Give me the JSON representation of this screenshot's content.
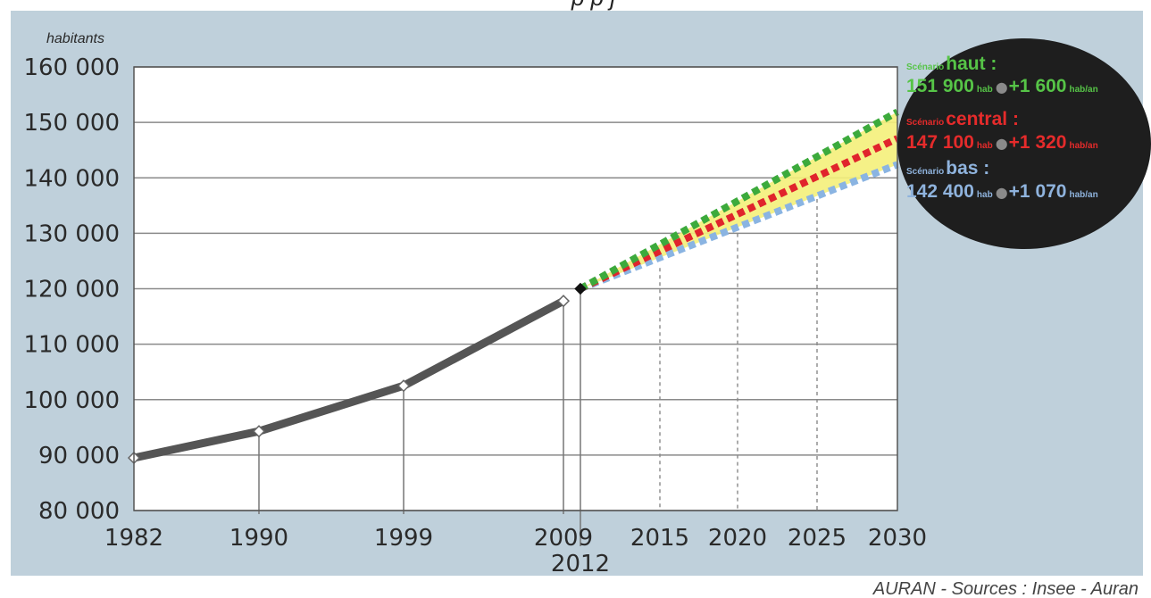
{
  "chart_data": {
    "type": "line",
    "header_text": "p p j",
    "ylabel": "habitants",
    "xlabel": "",
    "ylim": [
      80000,
      160000
    ],
    "y_ticks": [
      "80 000",
      "90 000",
      "100 000",
      "110 000",
      "120 000",
      "130 000",
      "140 000",
      "150 000",
      "160 000"
    ],
    "y_tick_values": [
      80000,
      90000,
      100000,
      110000,
      120000,
      130000,
      140000,
      150000,
      160000
    ],
    "x_ticks": [
      "1982",
      "1990",
      "1999",
      "2009",
      "2015",
      "2020",
      "2025",
      "2030"
    ],
    "x_tick_values": [
      1982,
      1990,
      1999,
      2009,
      2015,
      2020,
      2025,
      2030
    ],
    "x_ticks_lower": [
      "2012"
    ],
    "x_ticks_lower_values": [
      2012
    ],
    "xlim": [
      1982,
      2030
    ],
    "grid": true,
    "historical": {
      "x": [
        1982,
        1990,
        1999,
        2009,
        2012
      ],
      "y": [
        89500,
        94300,
        102500,
        117800,
        120000
      ],
      "color": "#555555"
    },
    "projections": [
      {
        "key": "haut",
        "color": "#3caa3c",
        "x": [
          2012,
          2030
        ],
        "y": [
          120000,
          151900
        ]
      },
      {
        "key": "central",
        "color": "#e0242c",
        "x": [
          2012,
          2030
        ],
        "y": [
          120000,
          147100
        ]
      },
      {
        "key": "bas",
        "color": "#8ab4e2",
        "x": [
          2012,
          2030
        ],
        "y": [
          120000,
          142400
        ]
      }
    ],
    "band_color": "#f4f07a",
    "scenarios": [
      {
        "prefix": "Scénario",
        "name": "haut :",
        "value": "151 900",
        "unit": "hab",
        "rate": "+1 600",
        "rate_unit": "hab/an",
        "color": "#56c447"
      },
      {
        "prefix": "Scénario",
        "name": "central :",
        "value": "147 100",
        "unit": "hab",
        "rate": "+1 320",
        "rate_unit": "hab/an",
        "color": "#e52b2b"
      },
      {
        "prefix": "Scénario",
        "name": "bas :",
        "value": "142 400",
        "unit": "hab",
        "rate": "+1 070",
        "rate_unit": "hab/an",
        "color": "#8fb3dd"
      }
    ],
    "dot_char": "●",
    "credit": "AURAN - Sources : Insee - Auran"
  }
}
